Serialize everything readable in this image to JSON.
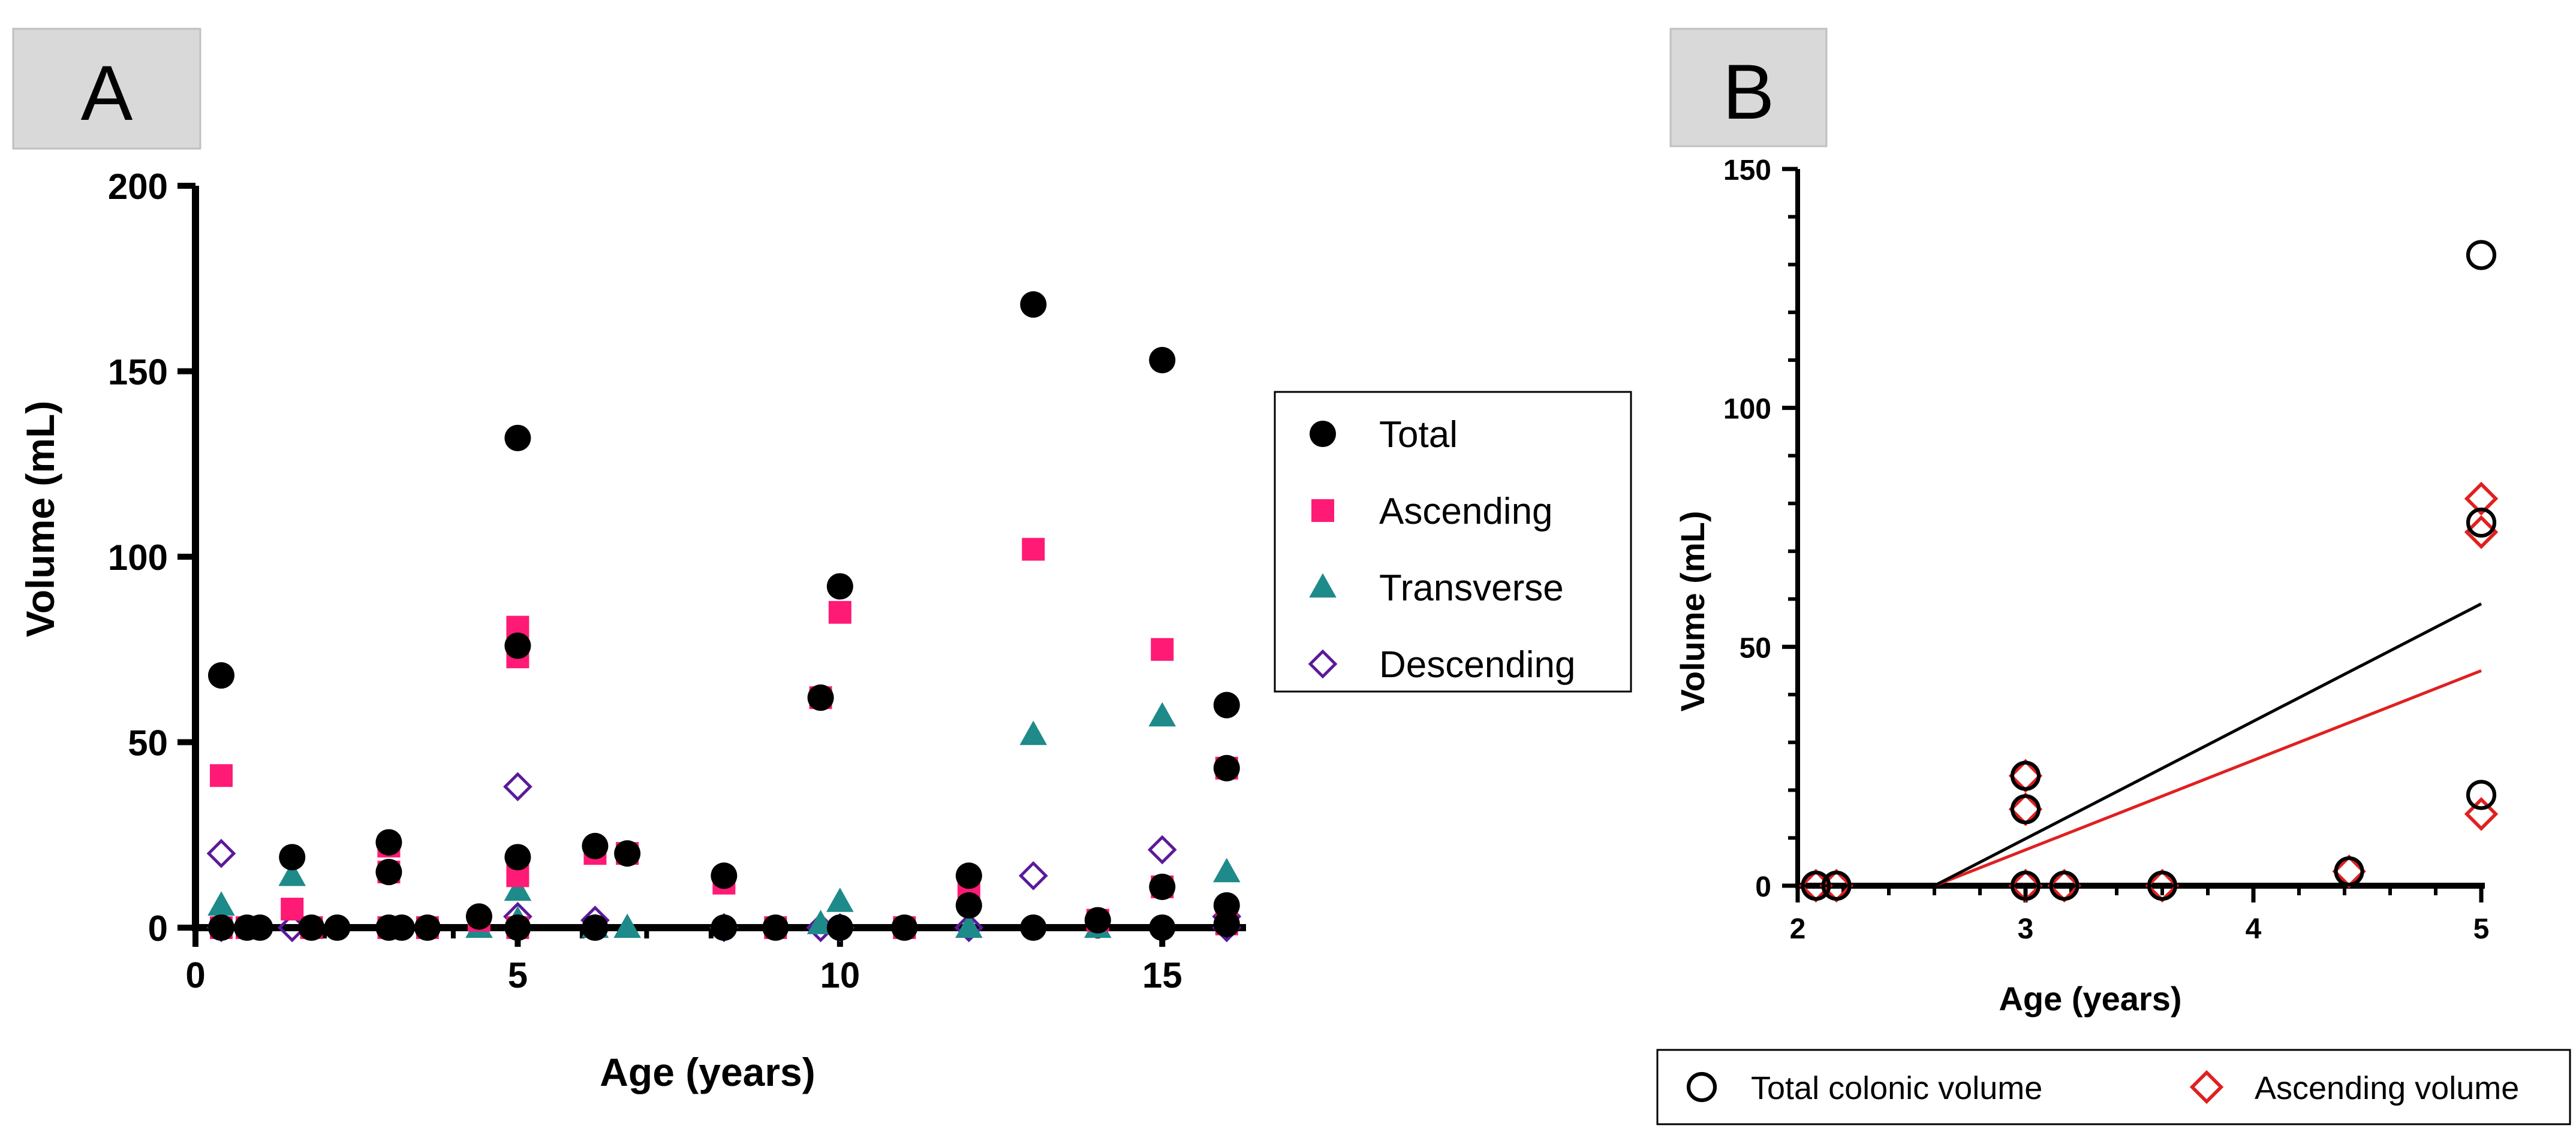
{
  "colors": {
    "total": "#000000",
    "ascending": "#ff1a75",
    "transverse": "#1f8a8a",
    "descending": "#5a1a9a",
    "b_total": "#000000",
    "b_ascending": "#e02020",
    "panel_bg": "#d9d9d9"
  },
  "chart_data": [
    {
      "panel": "A",
      "type": "scatter",
      "title": "",
      "xlabel": "Age (years)",
      "ylabel": "Volume (mL)",
      "xlim": [
        0,
        16.3
      ],
      "ylim": [
        0,
        200
      ],
      "xticks": [
        0,
        5,
        10,
        15
      ],
      "yticks": [
        0,
        50,
        100,
        150,
        200
      ],
      "legend_position": "right",
      "series": [
        {
          "name": "Total",
          "marker": "circle-filled",
          "points": [
            [
              0.4,
              68
            ],
            [
              0.4,
              0
            ],
            [
              0.8,
              0
            ],
            [
              1,
              0
            ],
            [
              1.5,
              19
            ],
            [
              1.8,
              0
            ],
            [
              2.2,
              0
            ],
            [
              3,
              23
            ],
            [
              3,
              15
            ],
            [
              3,
              0
            ],
            [
              3.2,
              0
            ],
            [
              3.6,
              0
            ],
            [
              4.4,
              3
            ],
            [
              5,
              132
            ],
            [
              5,
              76
            ],
            [
              5,
              19
            ],
            [
              5,
              0
            ],
            [
              6.2,
              22
            ],
            [
              6.2,
              0
            ],
            [
              6.7,
              20
            ],
            [
              8.2,
              14
            ],
            [
              8.2,
              0
            ],
            [
              9,
              0
            ],
            [
              9.7,
              62
            ],
            [
              10,
              92
            ],
            [
              10,
              0
            ],
            [
              11,
              0
            ],
            [
              12,
              14
            ],
            [
              12,
              6
            ],
            [
              13,
              168
            ],
            [
              13,
              0
            ],
            [
              14,
              2
            ],
            [
              15,
              153
            ],
            [
              15,
              11
            ],
            [
              15,
              0
            ],
            [
              16,
              60
            ],
            [
              16,
              43
            ],
            [
              16,
              6
            ],
            [
              16,
              1
            ]
          ]
        },
        {
          "name": "Ascending",
          "marker": "square-filled",
          "points": [
            [
              0.4,
              41
            ],
            [
              0.4,
              0
            ],
            [
              0.8,
              0
            ],
            [
              1.5,
              5
            ],
            [
              1.8,
              0
            ],
            [
              3,
              22
            ],
            [
              3,
              15
            ],
            [
              3,
              0
            ],
            [
              3.6,
              0
            ],
            [
              4.4,
              2
            ],
            [
              5,
              81
            ],
            [
              5,
              73
            ],
            [
              5,
              14
            ],
            [
              5,
              0
            ],
            [
              6.2,
              20
            ],
            [
              6.7,
              20
            ],
            [
              8.2,
              12
            ],
            [
              9,
              0
            ],
            [
              9.7,
              62
            ],
            [
              10,
              85
            ],
            [
              11,
              0
            ],
            [
              12,
              11
            ],
            [
              13,
              102
            ],
            [
              14,
              2
            ],
            [
              15,
              75
            ],
            [
              15,
              11
            ],
            [
              16,
              43
            ],
            [
              16,
              1
            ]
          ]
        },
        {
          "name": "Transverse",
          "marker": "triangle-filled",
          "points": [
            [
              0.4,
              6
            ],
            [
              1.5,
              14
            ],
            [
              4.4,
              0
            ],
            [
              5,
              10
            ],
            [
              5,
              2
            ],
            [
              6.2,
              0
            ],
            [
              6.7,
              0
            ],
            [
              9.7,
              1
            ],
            [
              10,
              7
            ],
            [
              12,
              0
            ],
            [
              13,
              52
            ],
            [
              14,
              0
            ],
            [
              15,
              57
            ],
            [
              16,
              15
            ]
          ]
        },
        {
          "name": "Descending",
          "marker": "diamond-open",
          "points": [
            [
              0.4,
              20
            ],
            [
              0.4,
              0
            ],
            [
              1.5,
              0
            ],
            [
              5,
              38
            ],
            [
              5,
              3
            ],
            [
              6.2,
              2
            ],
            [
              8.2,
              0
            ],
            [
              9.7,
              0
            ],
            [
              10,
              0
            ],
            [
              12,
              0
            ],
            [
              13,
              14
            ],
            [
              15,
              21
            ],
            [
              16,
              3
            ],
            [
              16,
              0
            ]
          ]
        }
      ]
    },
    {
      "panel": "B",
      "type": "scatter",
      "title": "",
      "xlabel": "Age (years)",
      "ylabel": "Volume (mL)",
      "xlim": [
        2,
        5
      ],
      "ylim": [
        0,
        150
      ],
      "xticks": [
        2,
        3,
        4,
        5
      ],
      "yticks": [
        0,
        50,
        100,
        150
      ],
      "legend_position": "bottom",
      "series": [
        {
          "name": "Total colonic volume",
          "marker": "circle-open",
          "points": [
            [
              2.08,
              0
            ],
            [
              2.17,
              0
            ],
            [
              3,
              23
            ],
            [
              3,
              16
            ],
            [
              3,
              0
            ],
            [
              3.17,
              0
            ],
            [
              3.6,
              0
            ],
            [
              4.42,
              3
            ],
            [
              5,
              132
            ],
            [
              5,
              76
            ],
            [
              5,
              19
            ]
          ],
          "regression_line": [
            [
              2.6,
              0
            ],
            [
              5,
              59
            ]
          ]
        },
        {
          "name": "Ascending volume",
          "marker": "diamond-open",
          "points": [
            [
              2.08,
              0
            ],
            [
              2.17,
              0
            ],
            [
              3,
              23
            ],
            [
              3,
              16
            ],
            [
              3,
              0
            ],
            [
              3.17,
              0
            ],
            [
              3.6,
              0
            ],
            [
              4.42,
              3
            ],
            [
              5,
              81
            ],
            [
              5,
              74
            ],
            [
              5,
              15
            ]
          ],
          "regression_line": [
            [
              2.6,
              0
            ],
            [
              5,
              45
            ]
          ]
        }
      ]
    }
  ]
}
